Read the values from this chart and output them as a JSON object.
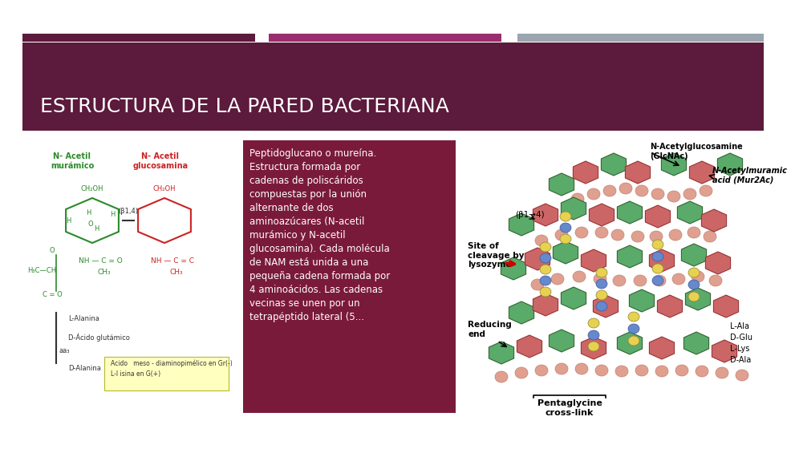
{
  "bg_color": "#ffffff",
  "bar1_color": "#5c1a3c",
  "bar2_color": "#9b2d6e",
  "bar3_color": "#9aa5af",
  "title_box_color": "#5c1a3c",
  "title_text": "ESTRUCTURA DE LA PARED BACTERIANA",
  "title_color": "#ffffff",
  "title_fontsize": 18,
  "text_box_color": "#7a1a3a",
  "text_color": "#ffffff",
  "text_fontsize": 8.5,
  "body_text": "Peptidoglucano o mureína.\nEstructura formada por\ncadenas de poliscáridos\ncompuestas por la unión\nalternante de dos\naminoazúcares (N-acetil\nmurámico y N-acetil\nglucosamina). Cada molécula\nde NAM está unida a una\npequeña cadena formada por\n4 aminoácidos. Las cadenas\nvecinas se unen por un\ntetrapéptido lateral (5...",
  "left_label1": "N- Acetil\nmurámico",
  "left_label2": "N- Acetil\nglucosamina",
  "left_color1": "#2a8a2a",
  "left_color2": "#cc2222",
  "footnote_text": "Acido   meso - diaminopimélico en Gr(-)\nL-l isina en G(+)",
  "footnote_bg": "#ffffc0",
  "footnote_border": "#cccc00",
  "chain_labels": [
    "L-Alanina",
    "D-Ácido glutámico",
    "aa₃",
    "D-Alanina"
  ],
  "right_label1": "N-Acetylglucosamine\n(GlcNAc)",
  "right_label2": "N-Acetylmuramic\nacid (Mur2Ac)",
  "right_label3": "(β1→4)",
  "right_label4": "Site of\ncleavage by\nlysozyme",
  "right_label5": "Reducing\nend",
  "right_label6": "L-Ala\nD-Glu\nL-Lys\nD-Ala",
  "right_label7": "Pentaglycine\ncross-link",
  "green_hex_color": "#5aaa6a",
  "pink_hex_color": "#cc6666",
  "salmon_bead_color": "#e0a090",
  "yellow_bead_color": "#e8d050",
  "blue_bead_color": "#6688cc"
}
